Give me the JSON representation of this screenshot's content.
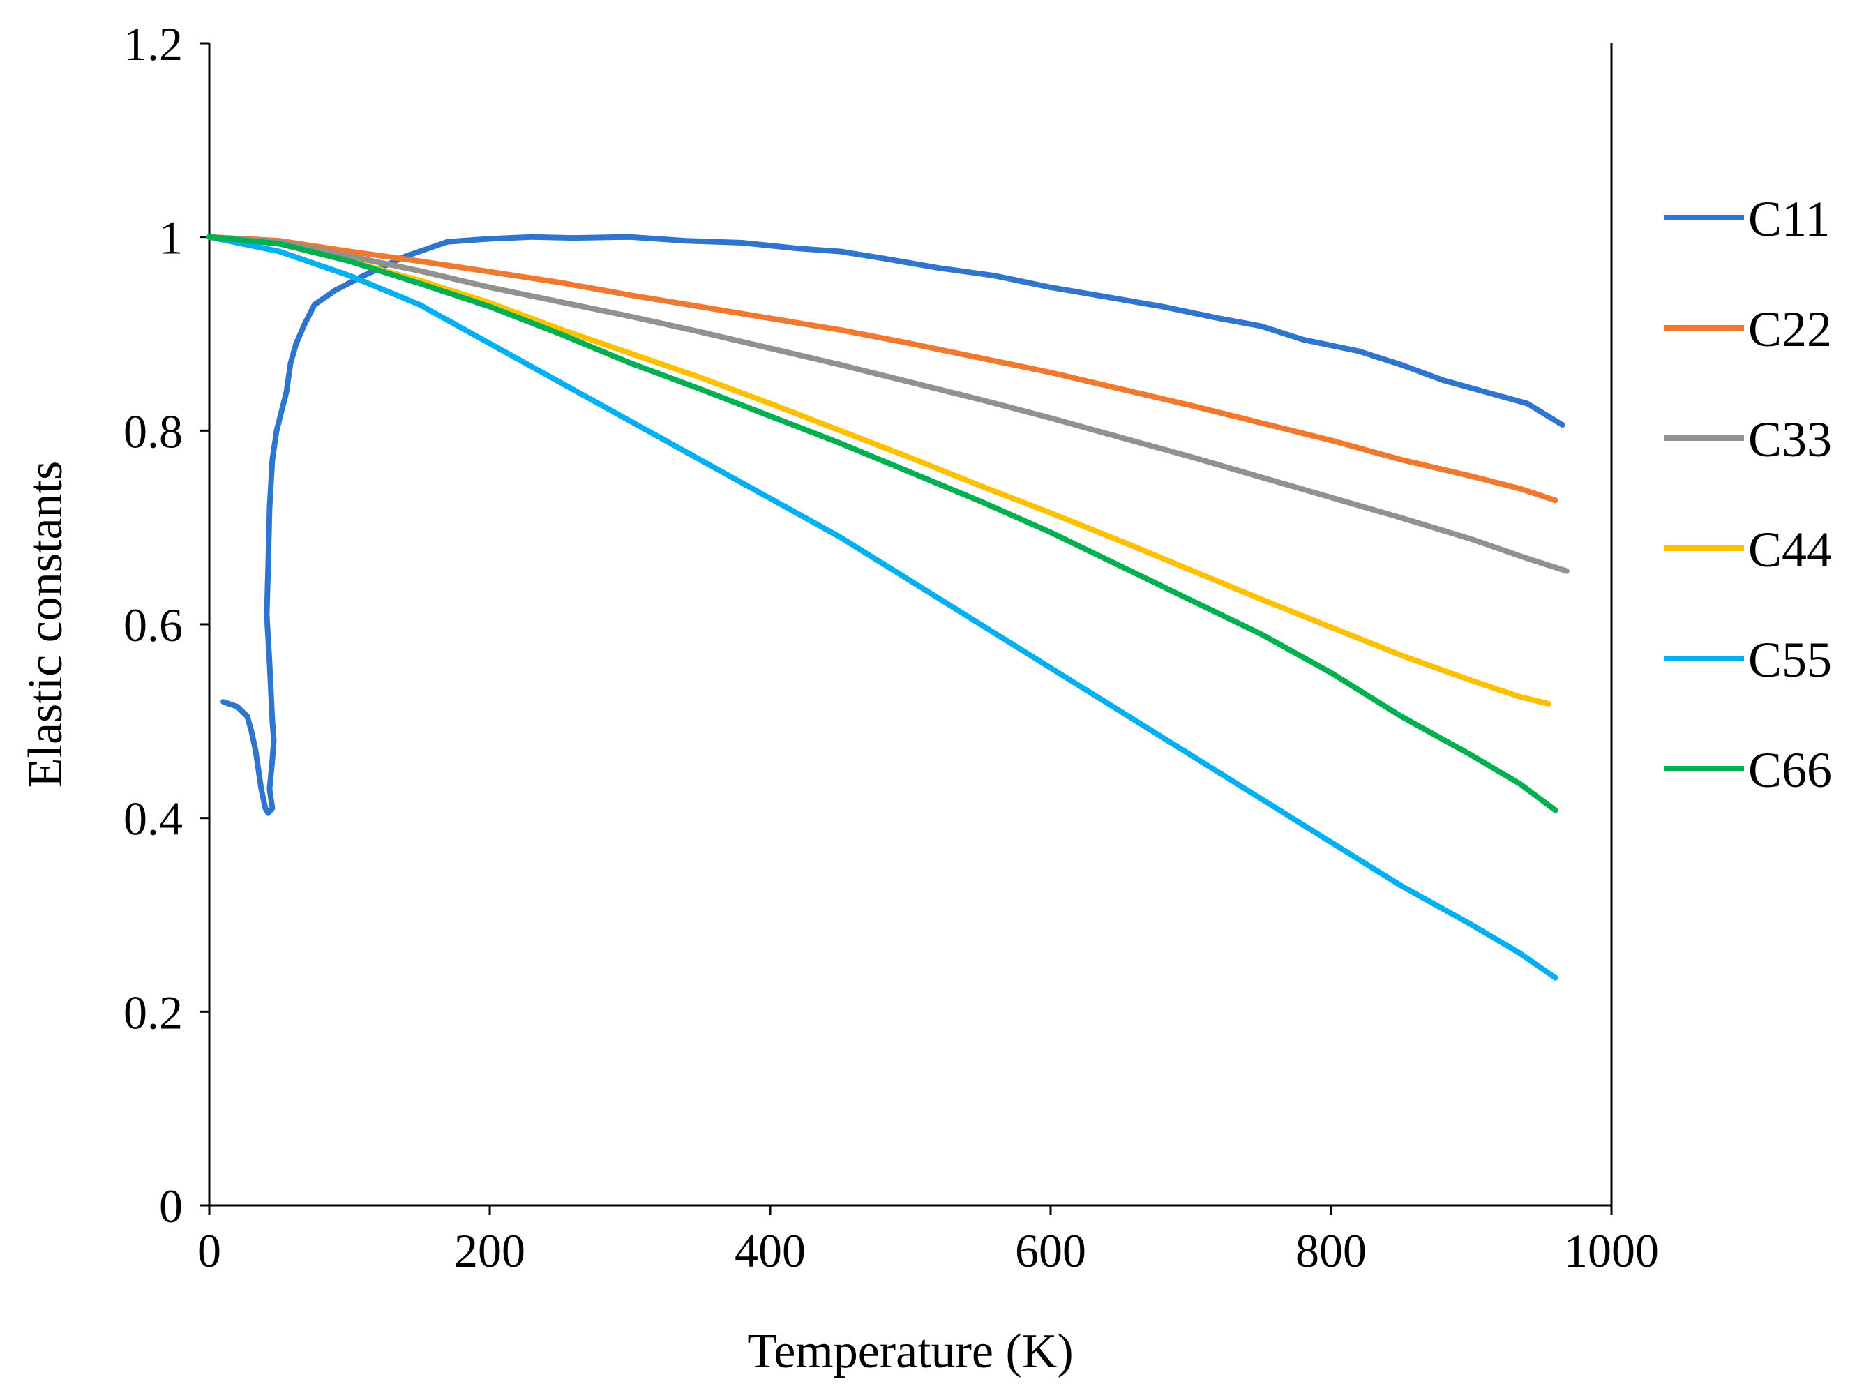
{
  "chart_data": {
    "type": "line",
    "title": "",
    "xlabel": "Temperature (K)",
    "ylabel": "Elastic constants",
    "xlim": [
      0,
      1000
    ],
    "ylim": [
      0,
      1.2
    ],
    "xticks": [
      0,
      200,
      400,
      600,
      800,
      1000
    ],
    "yticks": [
      0,
      0.2,
      0.4,
      0.6,
      0.8,
      1,
      1.2
    ],
    "ytick_labels": [
      "0",
      "0.2",
      "0.4",
      "0.6",
      "0.8",
      "1",
      "1.2"
    ],
    "grid": false,
    "legend": "right",
    "series": [
      {
        "name": "C11",
        "color": "#2e75d0",
        "points": [
          [
            10,
            0.52
          ],
          [
            20,
            0.515
          ],
          [
            27,
            0.505
          ],
          [
            30,
            0.49
          ],
          [
            33,
            0.47
          ],
          [
            35,
            0.45
          ],
          [
            37,
            0.43
          ],
          [
            40,
            0.41
          ],
          [
            42,
            0.405
          ],
          [
            45,
            0.41
          ],
          [
            43,
            0.43
          ],
          [
            45,
            0.46
          ],
          [
            46,
            0.48
          ],
          [
            45,
            0.5
          ],
          [
            44,
            0.53
          ],
          [
            43,
            0.56
          ],
          [
            41,
            0.61
          ],
          [
            42,
            0.66
          ],
          [
            43,
            0.72
          ],
          [
            45,
            0.77
          ],
          [
            48,
            0.8
          ],
          [
            55,
            0.84
          ],
          [
            58,
            0.87
          ],
          [
            62,
            0.89
          ],
          [
            68,
            0.91
          ],
          [
            75,
            0.93
          ],
          [
            90,
            0.945
          ],
          [
            110,
            0.96
          ],
          [
            140,
            0.98
          ],
          [
            170,
            0.995
          ],
          [
            200,
            0.998
          ],
          [
            230,
            1.0
          ],
          [
            260,
            0.999
          ],
          [
            300,
            1.0
          ],
          [
            340,
            0.996
          ],
          [
            380,
            0.994
          ],
          [
            420,
            0.988
          ],
          [
            450,
            0.985
          ],
          [
            480,
            0.978
          ],
          [
            520,
            0.968
          ],
          [
            560,
            0.96
          ],
          [
            600,
            0.948
          ],
          [
            640,
            0.938
          ],
          [
            680,
            0.928
          ],
          [
            720,
            0.916
          ],
          [
            750,
            0.908
          ],
          [
            780,
            0.894
          ],
          [
            820,
            0.882
          ],
          [
            850,
            0.868
          ],
          [
            880,
            0.852
          ],
          [
            910,
            0.84
          ],
          [
            940,
            0.828
          ],
          [
            965,
            0.806
          ]
        ]
      },
      {
        "name": "C22",
        "color": "#f0792f",
        "points": [
          [
            0,
            1.0
          ],
          [
            50,
            0.996
          ],
          [
            100,
            0.985
          ],
          [
            150,
            0.975
          ],
          [
            200,
            0.964
          ],
          [
            250,
            0.953
          ],
          [
            300,
            0.94
          ],
          [
            350,
            0.928
          ],
          [
            400,
            0.916
          ],
          [
            450,
            0.904
          ],
          [
            500,
            0.89
          ],
          [
            550,
            0.875
          ],
          [
            600,
            0.86
          ],
          [
            650,
            0.843
          ],
          [
            700,
            0.826
          ],
          [
            750,
            0.808
          ],
          [
            800,
            0.79
          ],
          [
            850,
            0.77
          ],
          [
            900,
            0.753
          ],
          [
            935,
            0.74
          ],
          [
            960,
            0.728
          ]
        ]
      },
      {
        "name": "C33",
        "color": "#919191",
        "points": [
          [
            0,
            1.0
          ],
          [
            50,
            0.995
          ],
          [
            100,
            0.98
          ],
          [
            150,
            0.965
          ],
          [
            200,
            0.948
          ],
          [
            250,
            0.933
          ],
          [
            300,
            0.918
          ],
          [
            350,
            0.902
          ],
          [
            400,
            0.885
          ],
          [
            450,
            0.868
          ],
          [
            500,
            0.85
          ],
          [
            550,
            0.832
          ],
          [
            600,
            0.813
          ],
          [
            650,
            0.793
          ],
          [
            700,
            0.773
          ],
          [
            750,
            0.752
          ],
          [
            800,
            0.731
          ],
          [
            850,
            0.71
          ],
          [
            900,
            0.688
          ],
          [
            940,
            0.668
          ],
          [
            968,
            0.655
          ]
        ]
      },
      {
        "name": "C44",
        "color": "#ffc000",
        "points": [
          [
            0,
            1.0
          ],
          [
            50,
            0.993
          ],
          [
            100,
            0.975
          ],
          [
            150,
            0.955
          ],
          [
            200,
            0.932
          ],
          [
            250,
            0.905
          ],
          [
            300,
            0.88
          ],
          [
            350,
            0.855
          ],
          [
            400,
            0.828
          ],
          [
            450,
            0.8
          ],
          [
            500,
            0.772
          ],
          [
            550,
            0.743
          ],
          [
            600,
            0.715
          ],
          [
            650,
            0.686
          ],
          [
            700,
            0.656
          ],
          [
            750,
            0.626
          ],
          [
            800,
            0.597
          ],
          [
            850,
            0.568
          ],
          [
            900,
            0.542
          ],
          [
            935,
            0.525
          ],
          [
            955,
            0.518
          ]
        ]
      },
      {
        "name": "C55",
        "color": "#00b0f0",
        "points": [
          [
            0,
            1.0
          ],
          [
            50,
            0.985
          ],
          [
            100,
            0.96
          ],
          [
            150,
            0.93
          ],
          [
            200,
            0.89
          ],
          [
            250,
            0.85
          ],
          [
            300,
            0.81
          ],
          [
            350,
            0.77
          ],
          [
            400,
            0.73
          ],
          [
            450,
            0.69
          ],
          [
            500,
            0.645
          ],
          [
            550,
            0.6
          ],
          [
            600,
            0.555
          ],
          [
            650,
            0.51
          ],
          [
            700,
            0.465
          ],
          [
            750,
            0.42
          ],
          [
            800,
            0.375
          ],
          [
            850,
            0.33
          ],
          [
            900,
            0.29
          ],
          [
            935,
            0.26
          ],
          [
            960,
            0.235
          ]
        ]
      },
      {
        "name": "C66",
        "color": "#00b050",
        "points": [
          [
            0,
            1.0
          ],
          [
            50,
            0.993
          ],
          [
            100,
            0.975
          ],
          [
            150,
            0.952
          ],
          [
            200,
            0.928
          ],
          [
            250,
            0.9
          ],
          [
            300,
            0.87
          ],
          [
            350,
            0.843
          ],
          [
            400,
            0.815
          ],
          [
            450,
            0.787
          ],
          [
            500,
            0.757
          ],
          [
            550,
            0.727
          ],
          [
            600,
            0.695
          ],
          [
            650,
            0.66
          ],
          [
            700,
            0.625
          ],
          [
            750,
            0.59
          ],
          [
            800,
            0.55
          ],
          [
            850,
            0.505
          ],
          [
            900,
            0.465
          ],
          [
            935,
            0.435
          ],
          [
            960,
            0.408
          ]
        ]
      }
    ]
  }
}
